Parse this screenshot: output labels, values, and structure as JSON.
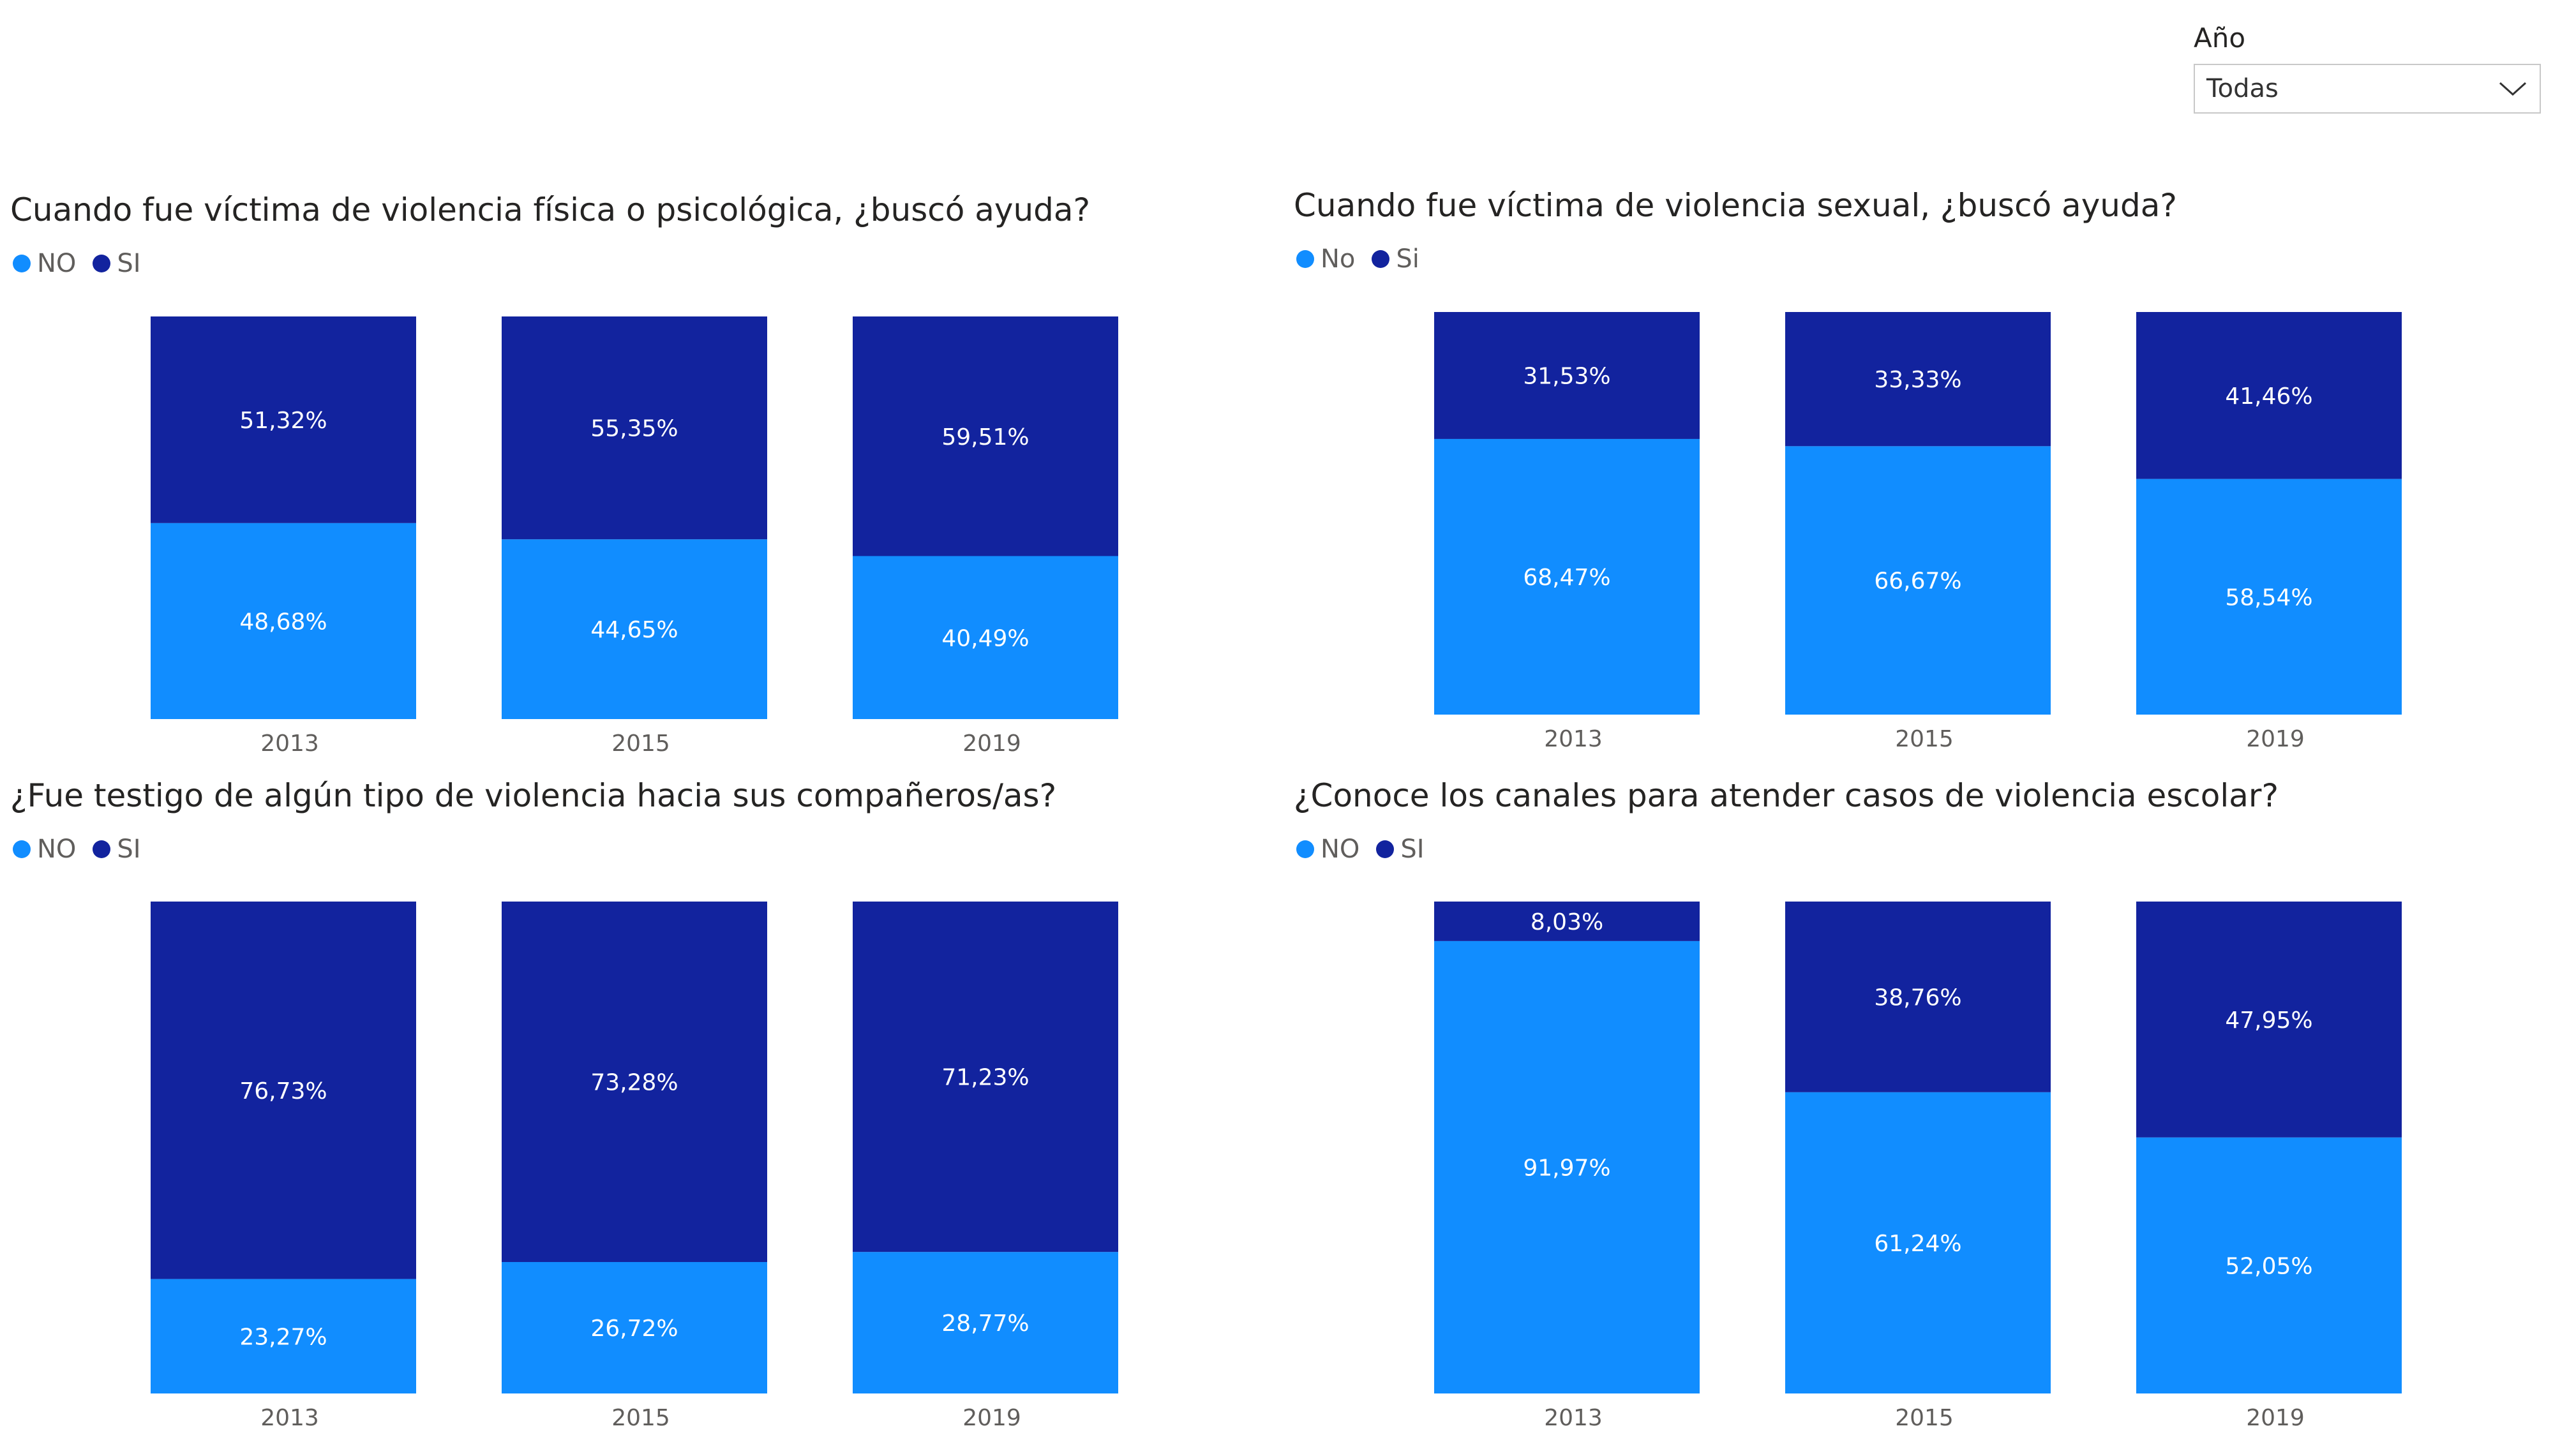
{
  "colors": {
    "no": "#118DFF",
    "si": "#12239E"
  },
  "slicer": {
    "label": "Año",
    "value": "Todas",
    "icon": "chevron-down-icon"
  },
  "chart_data": [
    {
      "type": "bar",
      "stacked": true,
      "title": "Cuando fue víctima de violencia física o psicológica, ¿buscó ayuda?",
      "legend": [
        "NO",
        "SI"
      ],
      "categories": [
        "2013",
        "2015",
        "2019"
      ],
      "series": [
        {
          "name": "NO",
          "values": [
            48.68,
            44.65,
            40.49
          ],
          "labels": [
            "48,68%",
            "44,65%",
            "40,49%"
          ]
        },
        {
          "name": "SI",
          "values": [
            51.32,
            55.35,
            59.51
          ],
          "labels": [
            "51,32%",
            "55,35%",
            "59,51%"
          ]
        }
      ],
      "ylim": [
        0,
        100
      ]
    },
    {
      "type": "bar",
      "stacked": true,
      "title": "Cuando fue víctima de violencia sexual, ¿buscó ayuda?",
      "legend": [
        "No",
        "Si"
      ],
      "categories": [
        "2013",
        "2015",
        "2019"
      ],
      "series": [
        {
          "name": "No",
          "values": [
            68.47,
            66.67,
            58.54
          ],
          "labels": [
            "68,47%",
            "66,67%",
            "58,54%"
          ]
        },
        {
          "name": "Si",
          "values": [
            31.53,
            33.33,
            41.46
          ],
          "labels": [
            "31,53%",
            "33,33%",
            "41,46%"
          ]
        }
      ],
      "ylim": [
        0,
        100
      ]
    },
    {
      "type": "bar",
      "stacked": true,
      "title": "¿Fue testigo de algún tipo de violencia hacia sus compañeros/as?",
      "legend": [
        "NO",
        "SI"
      ],
      "categories": [
        "2013",
        "2015",
        "2019"
      ],
      "series": [
        {
          "name": "NO",
          "values": [
            23.27,
            26.72,
            28.77
          ],
          "labels": [
            "23,27%",
            "26,72%",
            "28,77%"
          ]
        },
        {
          "name": "SI",
          "values": [
            76.73,
            73.28,
            71.23
          ],
          "labels": [
            "76,73%",
            "73,28%",
            "71,23%"
          ]
        }
      ],
      "ylim": [
        0,
        100
      ]
    },
    {
      "type": "bar",
      "stacked": true,
      "title": "¿Conoce los canales para atender casos de violencia escolar?",
      "legend": [
        "NO",
        "SI"
      ],
      "categories": [
        "2013",
        "2015",
        "2019"
      ],
      "series": [
        {
          "name": "NO",
          "values": [
            91.97,
            61.24,
            52.05
          ],
          "labels": [
            "91,97%",
            "61,24%",
            "52,05%"
          ]
        },
        {
          "name": "SI",
          "values": [
            8.03,
            38.76,
            47.95
          ],
          "labels": [
            "8,03%",
            "38,76%",
            "47,95%"
          ]
        }
      ],
      "ylim": [
        0,
        100
      ]
    }
  ]
}
